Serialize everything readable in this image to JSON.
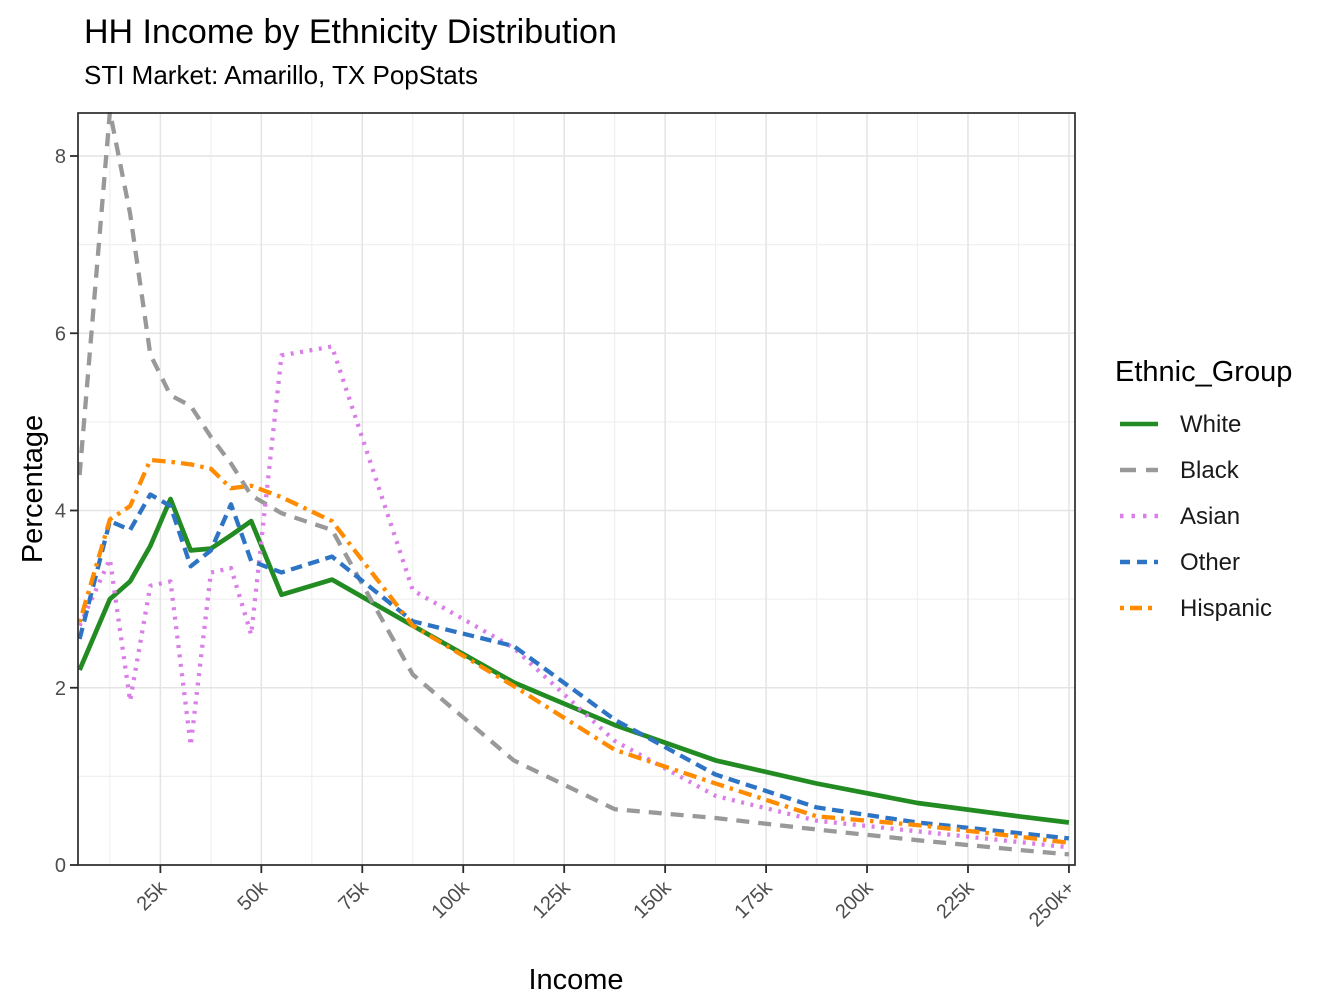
{
  "chart": {
    "title": "HH Income by Ethnicity Distribution",
    "subtitle": "STI Market: Amarillo, TX PopStats"
  },
  "chart_data": {
    "type": "line",
    "title": "HH Income by Ethnicity Distribution",
    "subtitle": "STI Market: Amarillo, TX PopStats",
    "xlabel": "Income",
    "ylabel": "Percentage",
    "legend_title": "Ethnic_Group",
    "legend_position": "right",
    "grid": true,
    "xlim": [
      4.6,
      251.5
    ],
    "ylim": [
      0,
      8.49
    ],
    "x_units": "thousand dollars",
    "y_units": "percent",
    "x_ticks": [
      {
        "value": 25,
        "label": "25k"
      },
      {
        "value": 50,
        "label": "50k"
      },
      {
        "value": 75,
        "label": "75k"
      },
      {
        "value": 100,
        "label": "100k"
      },
      {
        "value": 125,
        "label": "125k"
      },
      {
        "value": 150,
        "label": "150k"
      },
      {
        "value": 175,
        "label": "175k"
      },
      {
        "value": 200,
        "label": "200k"
      },
      {
        "value": 225,
        "label": "225k"
      },
      {
        "value": 250,
        "label": "250k+"
      }
    ],
    "y_ticks": [
      {
        "value": 0,
        "label": "0"
      },
      {
        "value": 2,
        "label": "2"
      },
      {
        "value": 4,
        "label": "4"
      },
      {
        "value": 6,
        "label": "6"
      },
      {
        "value": 8,
        "label": "8"
      }
    ],
    "y_minor_ticks": [
      1,
      3,
      5,
      7
    ],
    "x_minor_ticks": [
      12.5,
      37.5,
      62.5,
      87.5,
      112.5,
      137.5,
      162.5,
      187.5,
      212.5,
      237.5
    ],
    "x": [
      5,
      12.5,
      17.5,
      22.5,
      27.5,
      32.5,
      37.5,
      42.5,
      47.5,
      55,
      67.5,
      87.5,
      112.5,
      137.5,
      162.5,
      187.5,
      212.5,
      237.5,
      250
    ],
    "series": [
      {
        "name": "White",
        "color": "#228B22",
        "dash": "solid",
        "values": [
          2.2,
          3.0,
          3.2,
          3.6,
          4.13,
          3.55,
          3.57,
          3.72,
          3.88,
          3.05,
          3.22,
          2.7,
          2.06,
          1.58,
          1.18,
          0.92,
          0.7,
          0.55,
          0.48
        ]
      },
      {
        "name": "Black",
        "color": "#999999",
        "dash": "dashed",
        "values": [
          4.4,
          8.5,
          7.35,
          5.76,
          5.3,
          5.18,
          4.83,
          4.53,
          4.17,
          3.97,
          3.78,
          2.15,
          1.18,
          0.63,
          0.53,
          0.4,
          0.28,
          0.17,
          0.12
        ]
      },
      {
        "name": "Asian",
        "color": "#DA7FE8",
        "dash": "dotted",
        "values": [
          2.7,
          3.45,
          1.85,
          3.15,
          3.2,
          1.35,
          3.3,
          3.35,
          2.6,
          5.75,
          5.85,
          3.1,
          2.45,
          1.4,
          0.78,
          0.5,
          0.38,
          0.26,
          0.2
        ]
      },
      {
        "name": "Other",
        "color": "#2E74C4",
        "dash": "longdash",
        "values": [
          2.55,
          3.88,
          3.78,
          4.18,
          4.05,
          3.37,
          3.55,
          4.07,
          3.43,
          3.3,
          3.48,
          2.75,
          2.47,
          1.64,
          1.02,
          0.65,
          0.48,
          0.36,
          0.3
        ]
      },
      {
        "name": "Hispanic",
        "color": "#FF8C00",
        "dash": "twodash",
        "values": [
          2.74,
          3.9,
          4.05,
          4.57,
          4.55,
          4.52,
          4.47,
          4.25,
          4.28,
          4.15,
          3.88,
          2.7,
          2.02,
          1.3,
          0.92,
          0.55,
          0.45,
          0.32,
          0.25
        ]
      }
    ]
  }
}
